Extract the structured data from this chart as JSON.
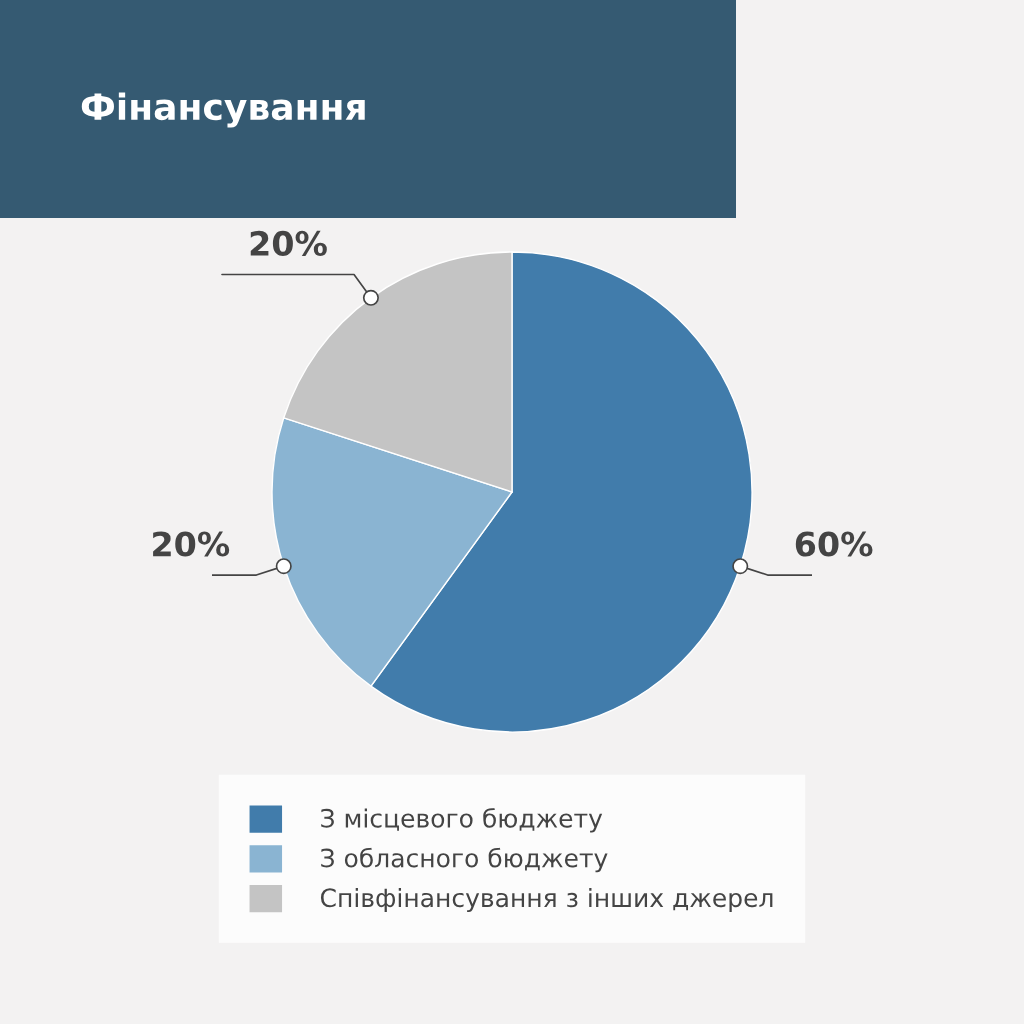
{
  "chart_data": {
    "type": "pie",
    "title": "Фінансування",
    "categories": [
      "З місцевого бюджету",
      "З обласного бюджету",
      "Співфінансування з інших джерел"
    ],
    "values": [
      60,
      20,
      20
    ],
    "colors": [
      "#417cab",
      "#8ab4d2",
      "#c4c4c4"
    ],
    "value_labels": [
      "60%",
      "20%",
      "20%"
    ],
    "legend": "bottom"
  }
}
